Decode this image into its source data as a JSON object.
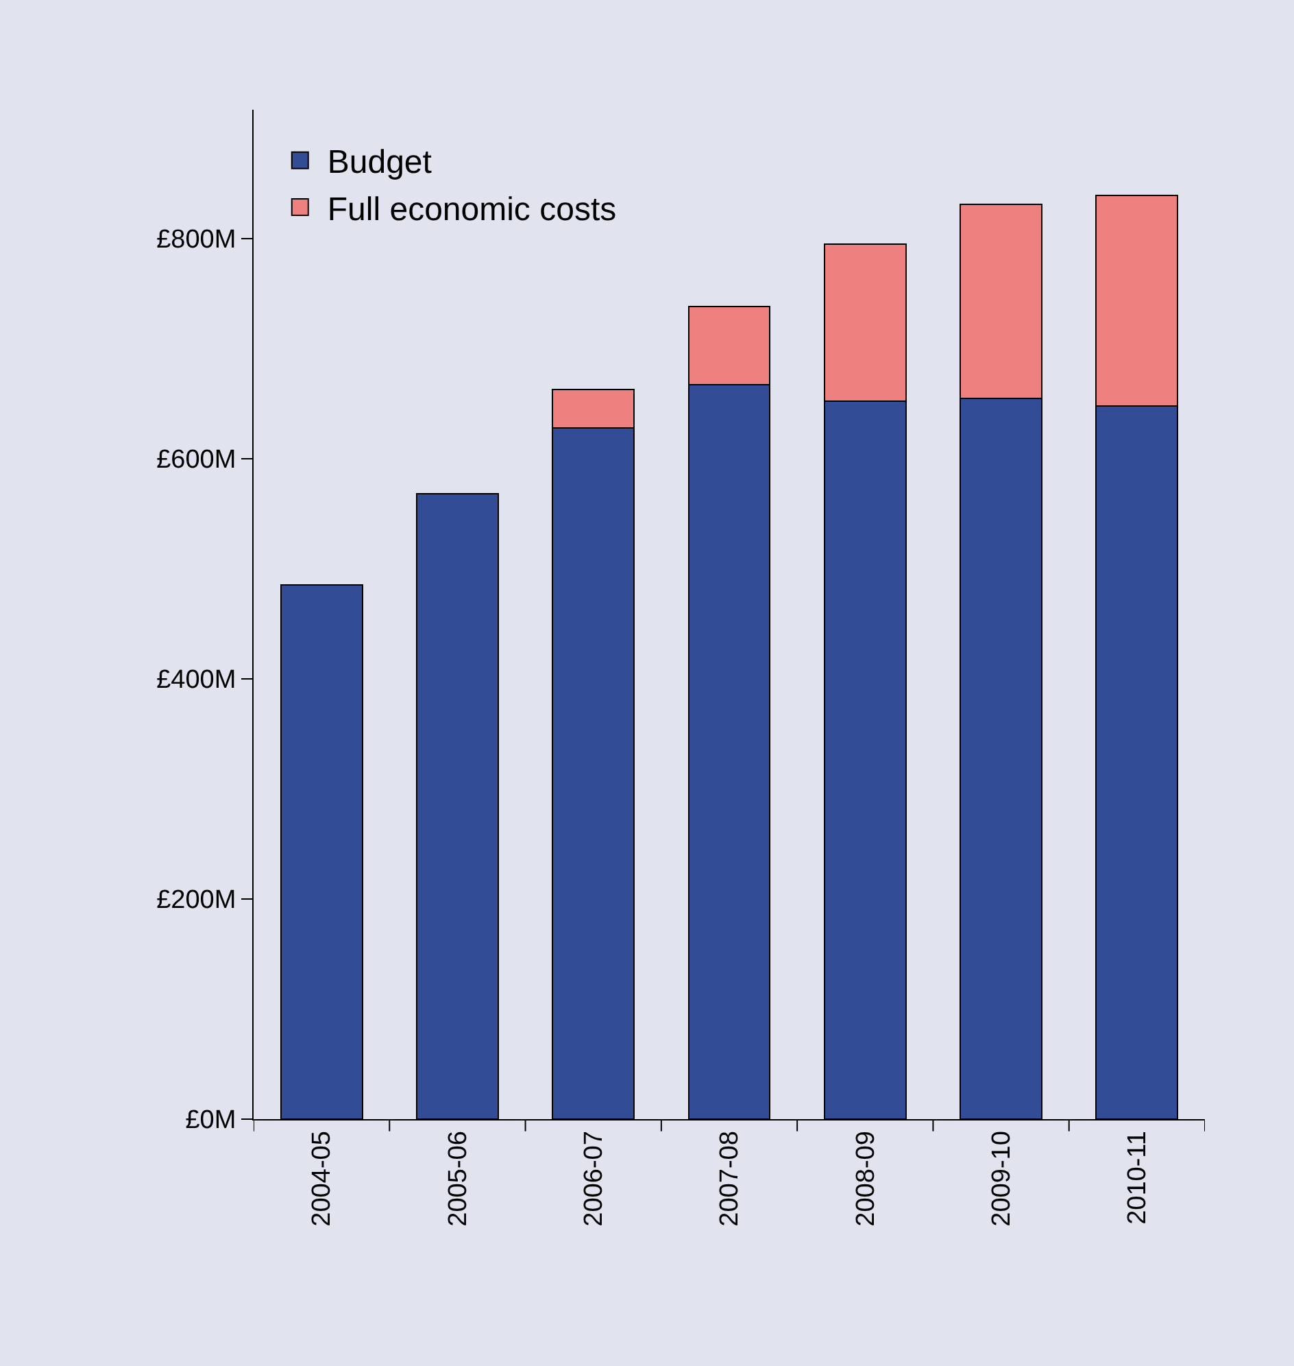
{
  "chart_data": {
    "type": "bar",
    "stacked": true,
    "categories": [
      "2004-05",
      "2005-06",
      "2006-07",
      "2007-08",
      "2008-09",
      "2009-10",
      "2010-11"
    ],
    "series": [
      {
        "name": "Budget",
        "color": "#334c96",
        "values": [
          485,
          568,
          628,
          667,
          652,
          655,
          648
        ]
      },
      {
        "name": "Full economic costs",
        "color": "#ef8080",
        "values": [
          null,
          null,
          35,
          71,
          143,
          176,
          191
        ]
      }
    ],
    "ylim": [
      0,
      917
    ],
    "yticks": [
      {
        "value": 0,
        "label": "£0M"
      },
      {
        "value": 200,
        "label": "£200M"
      },
      {
        "value": 400,
        "label": "£400M"
      },
      {
        "value": 600,
        "label": "£600M"
      },
      {
        "value": 800,
        "label": "£800M"
      }
    ],
    "grid": false,
    "legend": "top left"
  }
}
